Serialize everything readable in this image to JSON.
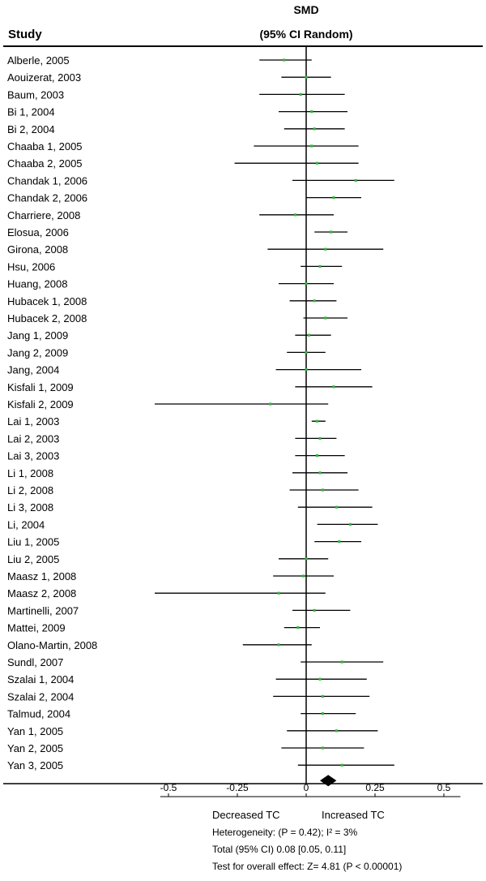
{
  "chart_data": {
    "type": "forest",
    "header": {
      "study_label": "Study",
      "effect_title_line1": "SMD",
      "effect_title_line2": "(95% CI Random)"
    },
    "xlim": [
      -0.6,
      0.65
    ],
    "ticks": [
      {
        "value": -0.5,
        "label": "-0.5"
      },
      {
        "value": -0.25,
        "label": "-0.25"
      },
      {
        "value": 0,
        "label": "0"
      },
      {
        "value": 0.25,
        "label": "0.25"
      },
      {
        "value": 0.5,
        "label": "0.5"
      }
    ],
    "studies": [
      {
        "name": "Alberle, 2005",
        "smd": -0.08,
        "lower": -0.17,
        "upper": 0.02
      },
      {
        "name": "Aouizerat, 2003",
        "smd": 0.0,
        "lower": -0.09,
        "upper": 0.09
      },
      {
        "name": "Baum, 2003",
        "smd": -0.02,
        "lower": -0.17,
        "upper": 0.14
      },
      {
        "name": "Bi 1, 2004",
        "smd": 0.02,
        "lower": -0.1,
        "upper": 0.15
      },
      {
        "name": "Bi 2, 2004",
        "smd": 0.03,
        "lower": -0.08,
        "upper": 0.14
      },
      {
        "name": "Chaaba 1, 2005",
        "smd": 0.02,
        "lower": -0.19,
        "upper": 0.19
      },
      {
        "name": "Chaaba 2, 2005",
        "smd": 0.04,
        "lower": -0.26,
        "upper": 0.19
      },
      {
        "name": "Chandak 1, 2006",
        "smd": 0.18,
        "lower": -0.05,
        "upper": 0.32
      },
      {
        "name": "Chandak 2, 2006",
        "smd": 0.1,
        "lower": 0.0,
        "upper": 0.2
      },
      {
        "name": "Charriere, 2008",
        "smd": -0.04,
        "lower": -0.17,
        "upper": 0.1
      },
      {
        "name": "Elosua, 2006",
        "smd": 0.09,
        "lower": 0.03,
        "upper": 0.15
      },
      {
        "name": "Girona, 2008",
        "smd": 0.07,
        "lower": -0.14,
        "upper": 0.28
      },
      {
        "name": "Hsu, 2006",
        "smd": 0.05,
        "lower": -0.02,
        "upper": 0.13
      },
      {
        "name": "Huang, 2008",
        "smd": 0.0,
        "lower": -0.1,
        "upper": 0.1
      },
      {
        "name": "Hubacek 1, 2008",
        "smd": 0.03,
        "lower": -0.06,
        "upper": 0.11
      },
      {
        "name": "Hubacek 2, 2008",
        "smd": 0.07,
        "lower": -0.01,
        "upper": 0.15
      },
      {
        "name": "Jang 1, 2009",
        "smd": 0.01,
        "lower": -0.04,
        "upper": 0.09
      },
      {
        "name": "Jang 2, 2009",
        "smd": 0.0,
        "lower": -0.07,
        "upper": 0.07
      },
      {
        "name": "Jang, 2004",
        "smd": 0.0,
        "lower": -0.11,
        "upper": 0.2
      },
      {
        "name": "Kisfali 1, 2009",
        "smd": 0.1,
        "lower": -0.04,
        "upper": 0.24
      },
      {
        "name": "Kisfali 2, 2009",
        "smd": -0.13,
        "lower": -0.55,
        "upper": 0.08
      },
      {
        "name": "Lai 1, 2003",
        "smd": 0.04,
        "lower": 0.02,
        "upper": 0.07
      },
      {
        "name": "Lai 2, 2003",
        "smd": 0.05,
        "lower": -0.04,
        "upper": 0.11
      },
      {
        "name": "Lai 3, 2003",
        "smd": 0.04,
        "lower": -0.04,
        "upper": 0.14
      },
      {
        "name": "Li 1, 2008",
        "smd": 0.05,
        "lower": -0.05,
        "upper": 0.15
      },
      {
        "name": "Li 2, 2008",
        "smd": 0.06,
        "lower": -0.06,
        "upper": 0.19
      },
      {
        "name": "Li 3, 2008",
        "smd": 0.11,
        "lower": -0.03,
        "upper": 0.24
      },
      {
        "name": "Li, 2004",
        "smd": 0.16,
        "lower": 0.04,
        "upper": 0.26
      },
      {
        "name": "Liu 1, 2005",
        "smd": 0.12,
        "lower": 0.03,
        "upper": 0.2
      },
      {
        "name": "Liu 2, 2005",
        "smd": 0.0,
        "lower": -0.1,
        "upper": 0.08
      },
      {
        "name": "Maasz 1, 2008",
        "smd": -0.01,
        "lower": -0.12,
        "upper": 0.1
      },
      {
        "name": "Maasz 2, 2008",
        "smd": -0.1,
        "lower": -0.55,
        "upper": 0.07
      },
      {
        "name": "Martinelli, 2007",
        "smd": 0.03,
        "lower": -0.05,
        "upper": 0.16
      },
      {
        "name": "Mattei, 2009",
        "smd": -0.03,
        "lower": -0.08,
        "upper": 0.05
      },
      {
        "name": "Olano-Martin, 2008",
        "smd": -0.1,
        "lower": -0.23,
        "upper": 0.02
      },
      {
        "name": "Sundl, 2007",
        "smd": 0.13,
        "lower": -0.02,
        "upper": 0.28
      },
      {
        "name": "Szalai 1, 2004",
        "smd": 0.05,
        "lower": -0.11,
        "upper": 0.22
      },
      {
        "name": "Szalai 2, 2004",
        "smd": 0.06,
        "lower": -0.12,
        "upper": 0.23
      },
      {
        "name": "Talmud, 2004",
        "smd": 0.06,
        "lower": -0.02,
        "upper": 0.18
      },
      {
        "name": "Yan 1, 2005",
        "smd": 0.11,
        "lower": -0.07,
        "upper": 0.26
      },
      {
        "name": "Yan 2, 2005",
        "smd": 0.06,
        "lower": -0.09,
        "upper": 0.21
      },
      {
        "name": "Yan 3, 2005",
        "smd": 0.13,
        "lower": -0.03,
        "upper": 0.32
      }
    ],
    "pooled": {
      "smd": 0.08,
      "lower": 0.05,
      "upper": 0.11
    },
    "direction_left": "Decreased TC",
    "direction_right": "Increased TC",
    "footer": {
      "heterogeneity": "Heterogeneity: (P = 0.42); I² = 3%",
      "total": "Total (95% CI) 0.08 [0.05, 0.11]",
      "overall_effect": "Test for overall effect: Z= 4.81 (P < 0.00001)"
    },
    "colors": {
      "ink": "#000000",
      "point": "#2fb83a",
      "background": "#ffffff"
    }
  }
}
